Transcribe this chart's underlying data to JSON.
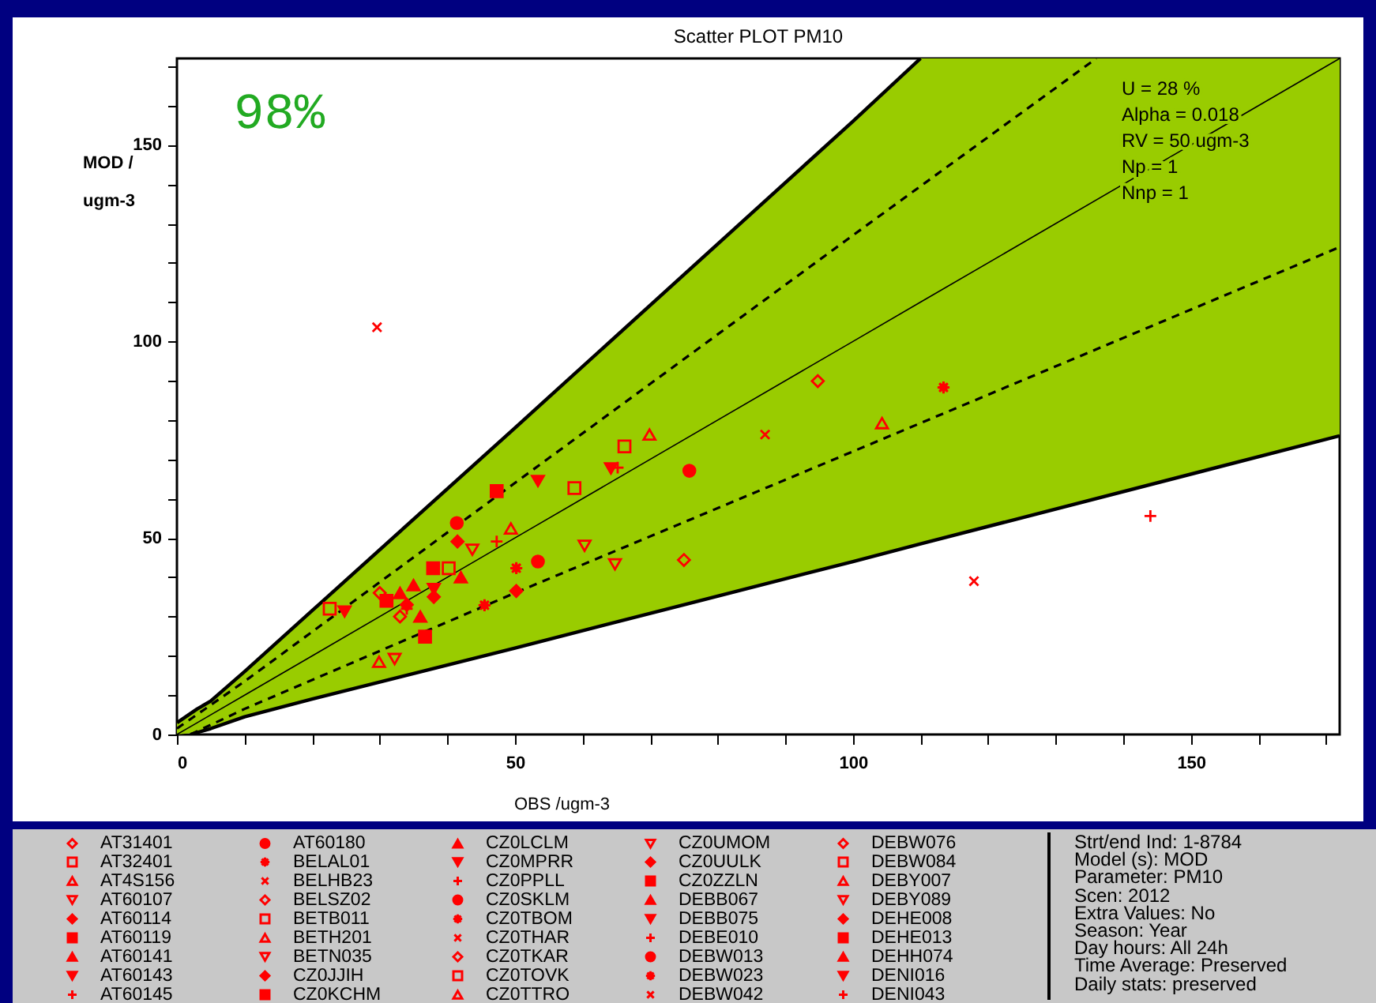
{
  "chart_data": {
    "type": "scatter",
    "title": "Scatter PLOT  PM10",
    "xlabel": "OBS /ugm-3",
    "ylabel": "MOD / ugm-3",
    "xlim": [
      0,
      172
    ],
    "ylim": [
      0,
      172
    ],
    "xticks": [
      0,
      {
        "value": 10,
        "label": null
      },
      {
        "value": 20,
        "label": null
      },
      {
        "value": 30,
        "label": null
      },
      {
        "value": 40,
        "label": null
      },
      50,
      {
        "value": 60,
        "label": null
      },
      {
        "value": 70,
        "label": null
      },
      {
        "value": 80,
        "label": null
      },
      {
        "value": 90,
        "label": null
      },
      100,
      {
        "value": 110,
        "label": null
      },
      {
        "value": 120,
        "label": null
      },
      {
        "value": 130,
        "label": null
      },
      {
        "value": 140,
        "label": null
      },
      150,
      {
        "value": 160,
        "label": null
      },
      {
        "value": 170,
        "label": null
      }
    ],
    "yticks": [
      0,
      {
        "value": 10,
        "label": null
      },
      {
        "value": 20,
        "label": null
      },
      {
        "value": 30,
        "label": null
      },
      {
        "value": 40,
        "label": null
      },
      50,
      {
        "value": 60,
        "label": null
      },
      {
        "value": 70,
        "label": null
      },
      {
        "value": 80,
        "label": null
      },
      {
        "value": 90,
        "label": null
      },
      100,
      {
        "value": 110,
        "label": null
      },
      {
        "value": 120,
        "label": null
      },
      {
        "value": 130,
        "label": null
      },
      {
        "value": 140,
        "label": null
      },
      150,
      {
        "value": 160,
        "label": null
      },
      {
        "value": 170,
        "label": null
      }
    ],
    "grid": false,
    "legend": "bottom",
    "annotations": [
      "98%",
      "U = 28 %",
      "Alpha = 0.018",
      "RV = 50 ugm-3",
      "Np = 1",
      "Nnp = 1",
      "Strt/end Ind: 1-8784",
      "Model (s): MOD",
      "Parameter: PM10",
      "Scen: 2012",
      "Extra Values: No",
      "Season: Year",
      "Day hours: All 24h",
      "Time Average: Preserved",
      "Daily stats: preserved"
    ],
    "series": [
      {
        "type": "line",
        "color": "#000000",
        "line_style": "solid",
        "x": [
          0,
          3,
          5,
          10,
          20,
          50,
          100,
          110,
          172
        ],
        "values": [
          0,
          3,
          5,
          10,
          20,
          50,
          100,
          110,
          172
        ],
        "lower": [
          0,
          0.5,
          1.5,
          4.5,
          9,
          22,
          44,
          48.5,
          76
        ],
        "upper": [
          3,
          6.5,
          8.5,
          16,
          31.5,
          78,
          156,
          172,
          172
        ]
      },
      {
        "type": "line",
        "color": "#000000",
        "line_style": "solid",
        "x": [
          0,
          3,
          5,
          10,
          20,
          50,
          100,
          110
        ],
        "values": [
          3,
          6.5,
          8.5,
          16,
          31.5,
          78,
          156,
          172
        ]
      },
      {
        "type": "line",
        "color": "#000000",
        "line_style": "solid",
        "x": [
          2,
          3,
          5,
          10,
          20,
          50,
          100,
          110,
          172
        ],
        "values": [
          0,
          0.5,
          1.5,
          4.5,
          9,
          22,
          44,
          48.5,
          76
        ]
      },
      {
        "type": "line",
        "color": "#000000",
        "line_style": "dashed",
        "x": [
          0,
          10,
          50,
          100,
          136
        ],
        "values": [
          1.5,
          13.5,
          64,
          127,
          172
        ]
      },
      {
        "type": "line",
        "color": "#000000",
        "line_style": "dashed",
        "x": [
          2,
          10,
          50,
          100,
          172
        ],
        "values": [
          0,
          6.5,
          36,
          72,
          124
        ]
      },
      {
        "name": "AT31401",
        "color": "#ff0000",
        "marker": "diamond",
        "x": [
          94.8
        ],
        "values": [
          89.9
        ]
      },
      {
        "name": "AT32401",
        "color": "#ff0000",
        "marker": "square",
        "x": [
          66.2
        ],
        "values": [
          73.3
        ]
      },
      {
        "name": "AT4S156",
        "color": "#ff0000",
        "marker": "triangle",
        "x": [
          104.3
        ],
        "values": [
          79.2
        ]
      },
      {
        "name": "AT60107",
        "color": "#ff0000",
        "marker": "triangle-down",
        "x": [
          60.3
        ],
        "values": [
          48
        ]
      },
      {
        "name": "AT60114",
        "color": "#ff0000",
        "marker": "diamond",
        "x": [
          50.2
        ],
        "values": [
          36.5
        ]
      },
      {
        "name": "AT60119",
        "color": "#ff0000",
        "marker": "square",
        "x": [
          47.3
        ],
        "values": [
          61.9
        ]
      },
      {
        "name": "AT60141",
        "color": "#ff0000",
        "marker": "triangle",
        "x": [
          35
        ],
        "values": [
          38
        ]
      },
      {
        "name": "AT60143",
        "color": "#ff0000",
        "marker": "triangle-down",
        "x": [
          53.4
        ],
        "values": [
          64.5
        ]
      },
      {
        "name": "AT60145",
        "color": "#ff0000",
        "marker": "plus",
        "x": [
          144
        ],
        "values": [
          55.6
        ]
      },
      {
        "name": "AT60180",
        "color": "#ff0000",
        "marker": "circle",
        "x": [
          75.8
        ],
        "values": [
          67.1
        ]
      },
      {
        "name": "BELAL01",
        "color": "#ff0000",
        "marker": "star",
        "x": [
          113.4
        ],
        "values": [
          88.3
        ]
      },
      {
        "name": "BELHB23",
        "color": "#ff0000",
        "marker": "cross",
        "x": [
          29.6
        ],
        "values": [
          103.6
        ]
      },
      {
        "name": "BELSZ02",
        "color": "#ff0000",
        "marker": "diamond",
        "x": [
          75
        ],
        "values": [
          44.4
        ]
      },
      {
        "name": "BETB011",
        "color": "#ff0000",
        "marker": "square",
        "x": [
          58.8
        ],
        "values": [
          62.7
        ]
      },
      {
        "name": "BETH201",
        "color": "#ff0000",
        "marker": "triangle",
        "x": [
          69.9
        ],
        "values": [
          76.3
        ]
      },
      {
        "name": "BETN035",
        "color": "#ff0000",
        "marker": "triangle-down",
        "x": [
          64.8
        ],
        "values": [
          43.3
        ]
      },
      {
        "name": "CZ0JJIH",
        "color": "#ff0000",
        "marker": "diamond",
        "x": [
          41.5
        ],
        "values": [
          49.1
        ]
      },
      {
        "name": "CZ0KCHM",
        "color": "#ff0000",
        "marker": "square",
        "x": [
          37.9
        ],
        "values": [
          42.3
        ]
      },
      {
        "name": "CZ0LCLM",
        "color": "#ff0000",
        "marker": "triangle",
        "x": [
          33
        ],
        "values": [
          36
        ]
      },
      {
        "name": "CZ0MPRR",
        "color": "#ff0000",
        "marker": "triangle-down",
        "x": [
          64.2
        ],
        "values": [
          67.7
        ]
      },
      {
        "name": "CZ0PPLL",
        "color": "#ff0000",
        "marker": "plus",
        "x": [
          65.2
        ],
        "values": [
          67.9
        ]
      },
      {
        "name": "CZ0SKLM",
        "color": "#ff0000",
        "marker": "circle",
        "x": [
          53.4
        ],
        "values": [
          44
        ]
      },
      {
        "name": "CZ0TBOM",
        "color": "#ff0000",
        "marker": "star",
        "x": [
          50.2
        ],
        "values": [
          42.3
        ]
      },
      {
        "name": "CZ0THAR",
        "color": "#ff0000",
        "marker": "cross",
        "x": [
          87
        ],
        "values": [
          76.3
        ]
      },
      {
        "name": "CZ0TKAR",
        "color": "#ff0000",
        "marker": "diamond",
        "x": [
          30
        ],
        "values": [
          36
        ]
      },
      {
        "name": "CZ0TOVK",
        "color": "#ff0000",
        "marker": "square",
        "x": [
          22.6
        ],
        "values": [
          32
        ]
      },
      {
        "name": "CZ0TTRO",
        "color": "#ff0000",
        "marker": "triangle",
        "x": [
          29.9
        ],
        "values": [
          18.5
        ]
      },
      {
        "name": "CZ0UMOM",
        "color": "#ff0000",
        "marker": "triangle-down",
        "x": [
          32.2
        ],
        "values": [
          19.2
        ]
      },
      {
        "name": "CZ0UULK",
        "color": "#ff0000",
        "marker": "diamond",
        "x": [
          34
        ],
        "values": [
          33
        ]
      },
      {
        "name": "CZ0ZZLN",
        "color": "#ff0000",
        "marker": "square",
        "x": [
          36.7
        ],
        "values": [
          24.9
        ]
      },
      {
        "name": "DEBB067",
        "color": "#ff0000",
        "marker": "triangle",
        "x": [
          42
        ],
        "values": [
          40
        ]
      },
      {
        "name": "DEBB075",
        "color": "#ff0000",
        "marker": "triangle-down",
        "x": [
          24.8
        ],
        "values": [
          31.3
        ]
      },
      {
        "name": "DEBE010",
        "color": "#ff0000",
        "marker": "plus",
        "x": [
          47.3
        ],
        "values": [
          49.1
        ]
      },
      {
        "name": "DEBW013",
        "color": "#ff0000",
        "marker": "circle",
        "x": [
          41.4
        ],
        "values": [
          53.8
        ]
      },
      {
        "name": "DEBW023",
        "color": "#ff0000",
        "marker": "star",
        "x": [
          45.5
        ],
        "values": [
          32.9
        ]
      },
      {
        "name": "DEBW042",
        "color": "#ff0000",
        "marker": "cross",
        "x": [
          117.9
        ],
        "values": [
          39
        ]
      },
      {
        "name": "DEBW076",
        "color": "#ff0000",
        "marker": "diamond",
        "x": [
          33
        ],
        "values": [
          30
        ]
      },
      {
        "name": "DEBW084",
        "color": "#ff0000",
        "marker": "square",
        "x": [
          40.2
        ],
        "values": [
          42.3
        ]
      },
      {
        "name": "DEBY007",
        "color": "#ff0000",
        "marker": "triangle",
        "x": [
          49.4
        ],
        "values": [
          52.4
        ]
      },
      {
        "name": "DEBY089",
        "color": "#ff0000",
        "marker": "triangle-down",
        "x": [
          43.7
        ],
        "values": [
          47
        ]
      },
      {
        "name": "DEHE008",
        "color": "#ff0000",
        "marker": "diamond",
        "x": [
          38
        ],
        "values": [
          35
        ]
      },
      {
        "name": "DEHE013",
        "color": "#ff0000",
        "marker": "square",
        "x": [
          31
        ],
        "values": [
          34
        ]
      },
      {
        "name": "DEHH074",
        "color": "#ff0000",
        "marker": "triangle",
        "x": [
          36
        ],
        "values": [
          30
        ]
      },
      {
        "name": "DENI016",
        "color": "#ff0000",
        "marker": "triangle-down",
        "x": [
          38
        ],
        "values": [
          37
        ]
      },
      {
        "name": "DENI043",
        "color": "#ff0000",
        "marker": "plus",
        "x": [
          34
        ],
        "values": [
          32
        ]
      }
    ]
  }
}
